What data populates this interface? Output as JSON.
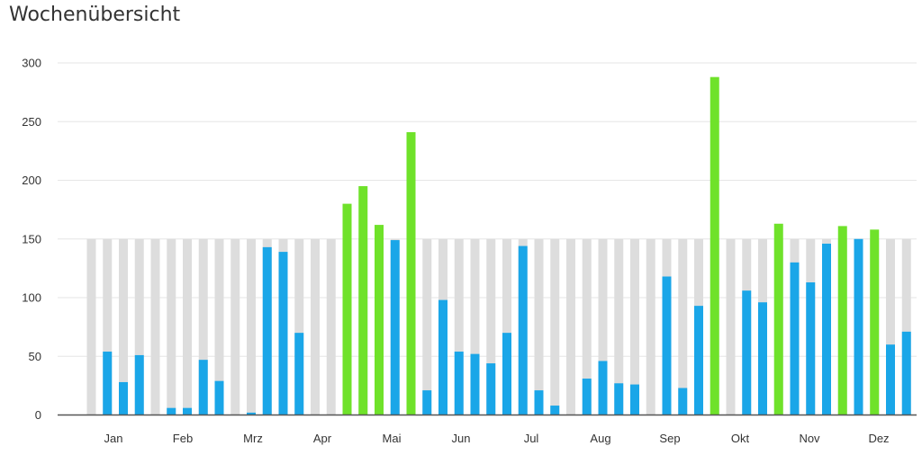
{
  "chart_data": {
    "type": "bar",
    "title": "Wochenübersicht",
    "xlabel": "",
    "ylabel": "",
    "ylim": [
      0,
      300
    ],
    "y_ticks": [
      "0",
      "50",
      "100",
      "150",
      "200",
      "250",
      "300"
    ],
    "month_labels": [
      "Jan",
      "Feb",
      "Mrz",
      "Apr",
      "Mai",
      "Jun",
      "Jul",
      "Aug",
      "Sep",
      "Okt",
      "Nov",
      "Dez"
    ],
    "target": 150,
    "grid": true,
    "legend": "none",
    "colors": {
      "target": "#dddddd",
      "below_target": "#1aa6e8",
      "above_target": "#6fe22a",
      "grid": "#e6e6e6",
      "axis": "#555555"
    },
    "weeks": [
      "1",
      "2",
      "3",
      "4",
      "5",
      "6",
      "7",
      "8",
      "9",
      "10",
      "11",
      "12",
      "13",
      "14",
      "15",
      "16",
      "17",
      "18",
      "19",
      "20",
      "21",
      "22",
      "23",
      "24",
      "25",
      "26",
      "27",
      "28",
      "29",
      "30",
      "31",
      "32",
      "33",
      "34",
      "35",
      "36",
      "37",
      "38",
      "39",
      "40",
      "41",
      "42",
      "43",
      "44",
      "45",
      "46",
      "47",
      "48",
      "49",
      "50",
      "51",
      "52"
    ],
    "values": [
      0,
      54,
      28,
      51,
      0,
      6,
      6,
      47,
      29,
      0,
      2,
      143,
      139,
      70,
      0,
      0,
      180,
      195,
      162,
      149,
      241,
      21,
      98,
      54,
      52,
      44,
      70,
      144,
      21,
      8,
      0,
      31,
      46,
      27,
      26,
      0,
      118,
      23,
      93,
      288,
      0,
      106,
      96,
      163,
      130,
      113,
      146,
      161,
      150,
      158,
      60,
      71
    ]
  }
}
